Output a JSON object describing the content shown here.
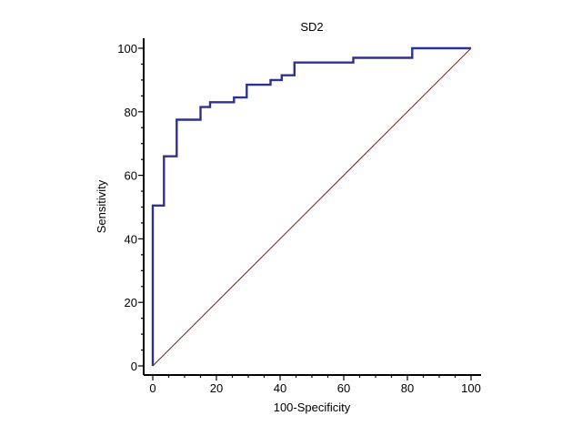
{
  "chart_data": {
    "type": "line",
    "title": "SD2",
    "xlabel": "100-Specificity",
    "ylabel": "Sensitivity",
    "xlim": [
      0,
      100
    ],
    "ylim": [
      0,
      100
    ],
    "x_ticks": [
      "0",
      "20",
      "40",
      "60",
      "80",
      "100"
    ],
    "y_ticks": [
      "0",
      "20",
      "40",
      "60",
      "80",
      "100"
    ],
    "grid": false,
    "legend": "none",
    "series": [
      {
        "color": "#2e3192",
        "step": true,
        "x": [
          0,
          0,
          3.5,
          3.5,
          7.5,
          7.5,
          15,
          15,
          18,
          18,
          25.5,
          25.5,
          29.5,
          29.5,
          37,
          37,
          40.5,
          40.5,
          44.5,
          44.5,
          63,
          63,
          81.5,
          81.5,
          100
        ],
        "y": [
          0,
          50.5,
          50.5,
          66,
          66,
          77.5,
          77.5,
          81.5,
          81.5,
          83,
          83,
          84.5,
          84.5,
          88.5,
          88.5,
          90,
          90,
          91.5,
          91.5,
          95.5,
          95.5,
          97,
          97,
          100,
          100
        ]
      },
      {
        "color": "#7a1f1f",
        "x": [
          0,
          100
        ],
        "y": [
          0,
          100
        ]
      }
    ]
  }
}
